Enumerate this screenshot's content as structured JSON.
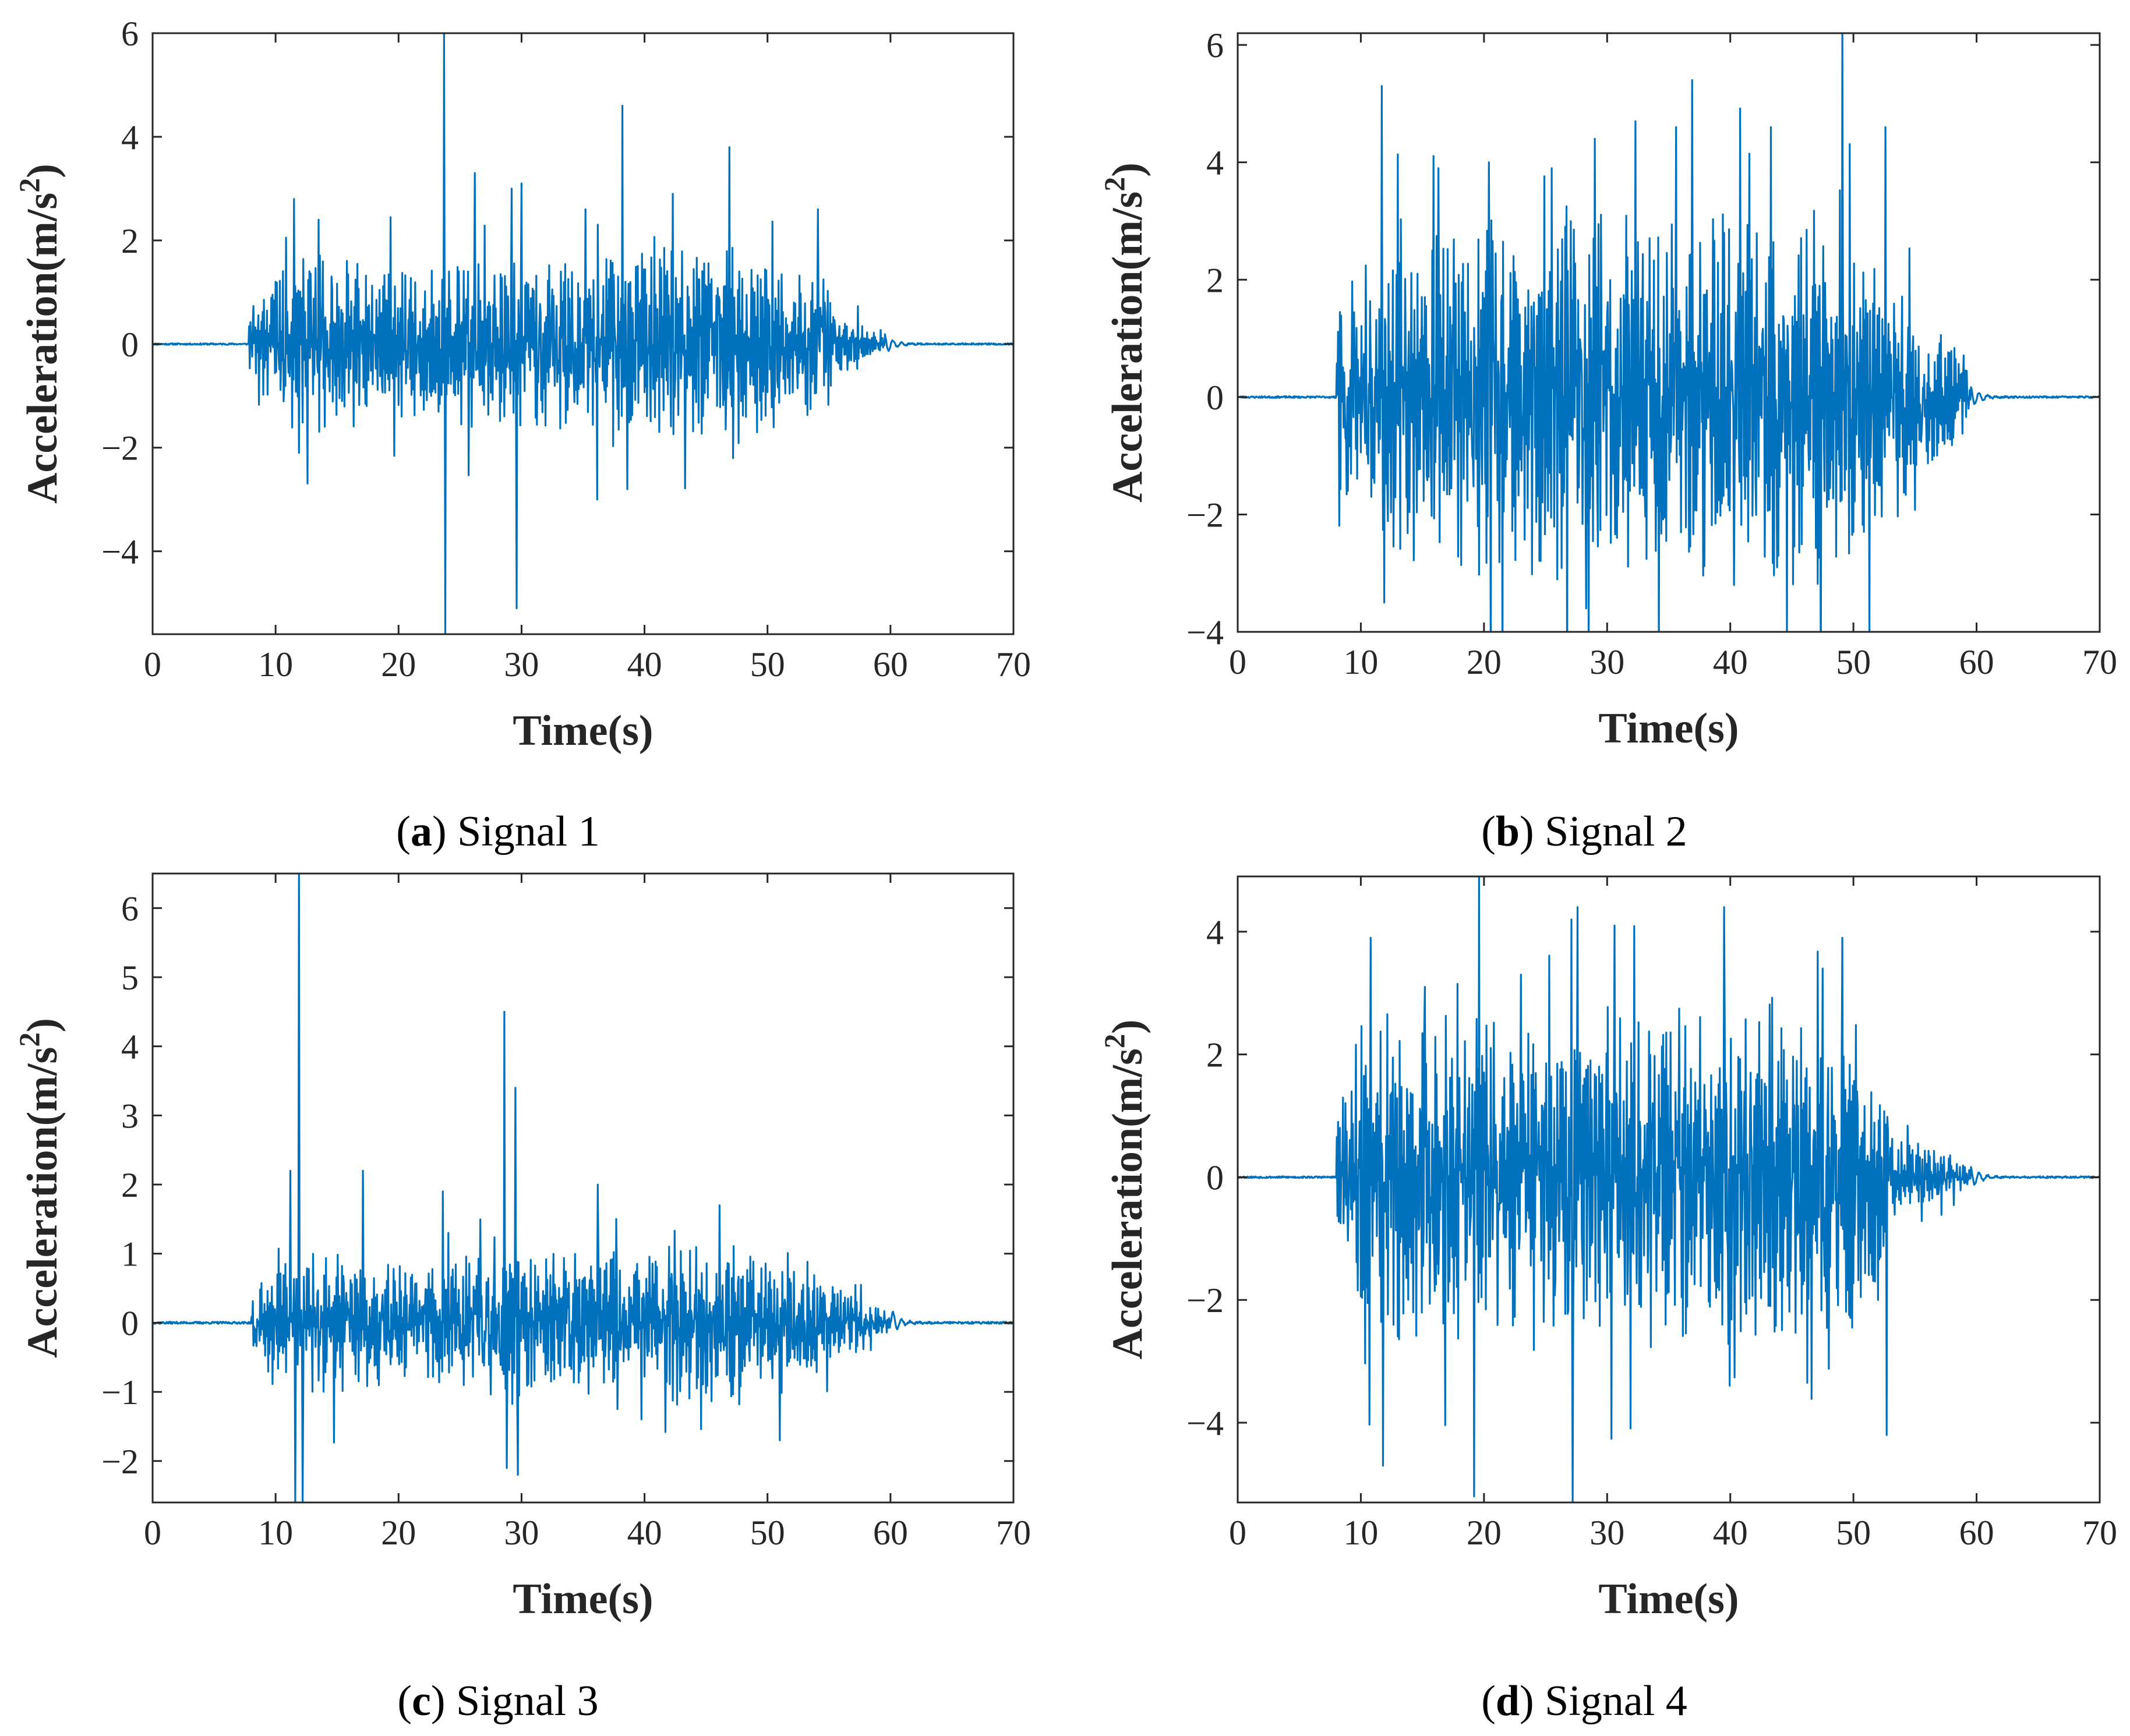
{
  "figure": {
    "color_line": "#0072BD",
    "color_axes": "#262626"
  },
  "chart_data": [
    {
      "type": "line",
      "caption_letter": "a",
      "caption_text": "Signal 1",
      "xlabel": "Time(s)",
      "ylabel_main": "Acceleration(m/s",
      "ylabel_sup": "2",
      "ylabel_close": ")",
      "xlim": [
        0,
        70
      ],
      "ylim": [
        -5.6,
        6
      ],
      "xticks": [
        0,
        10,
        20,
        30,
        40,
        50,
        60,
        70
      ],
      "xtick_labels": [
        "0",
        "10",
        "20",
        "30",
        "40",
        "50",
        "60",
        "70"
      ],
      "yticks": [
        -4,
        -2,
        0,
        2,
        4,
        6
      ],
      "ytick_labels": [
        "−4",
        "−2",
        "0",
        "2",
        "4",
        "6"
      ],
      "onset_s": 7.8,
      "end_s": 59.5,
      "envelope": [
        [
          7.8,
          0.5
        ],
        [
          12,
          1.6
        ],
        [
          20,
          1.3
        ],
        [
          30,
          1.4
        ],
        [
          40,
          1.6
        ],
        [
          47,
          1.7
        ],
        [
          54,
          1.1
        ],
        [
          57,
          0.45
        ],
        [
          59.5,
          0.1
        ]
      ],
      "seed": 11,
      "spikes": [
        [
          11.5,
          2.8
        ],
        [
          11.9,
          -2.1
        ],
        [
          13.5,
          2.4
        ],
        [
          23.7,
          6.0
        ],
        [
          23.8,
          -5.6
        ],
        [
          29.2,
          3.0
        ],
        [
          29.6,
          -5.1
        ],
        [
          30.0,
          3.1
        ],
        [
          38.2,
          4.6
        ],
        [
          38.6,
          -2.8
        ],
        [
          42.3,
          2.9
        ],
        [
          46.9,
          3.8
        ],
        [
          47.2,
          -2.2
        ],
        [
          54.1,
          2.6
        ],
        [
          26.2,
          3.3
        ],
        [
          35.2,
          2.6
        ]
      ]
    },
    {
      "type": "line",
      "caption_letter": "b",
      "caption_text": "Signal 2",
      "xlabel": "Time(s)",
      "ylabel_main": "Acceleration(m/s",
      "ylabel_sup": "2",
      "ylabel_close": ")",
      "xlim": [
        0,
        70
      ],
      "ylim": [
        -4,
        6.2
      ],
      "xticks": [
        0,
        10,
        20,
        30,
        40,
        50,
        60,
        70
      ],
      "xtick_labels": [
        "0",
        "10",
        "20",
        "30",
        "40",
        "50",
        "60",
        "70"
      ],
      "yticks": [
        -4,
        -2,
        0,
        2,
        4,
        6
      ],
      "ytick_labels": [
        "−4",
        "−2",
        "0",
        "2",
        "4",
        "6"
      ],
      "onset_s": 8.0,
      "end_s": 59.5,
      "envelope": [
        [
          8,
          1.5
        ],
        [
          12,
          2.6
        ],
        [
          20,
          2.7
        ],
        [
          30,
          2.8
        ],
        [
          40,
          2.8
        ],
        [
          50,
          2.6
        ],
        [
          55,
          1.4
        ],
        [
          59,
          0.6
        ],
        [
          59.5,
          0.1
        ]
      ],
      "seed": 23,
      "spikes": [
        [
          11.7,
          5.3
        ],
        [
          11.9,
          -3.5
        ],
        [
          16.3,
          3.9
        ],
        [
          20.4,
          4.0
        ],
        [
          25.5,
          3.9
        ],
        [
          28.3,
          -3.6
        ],
        [
          29.0,
          4.4
        ],
        [
          32.3,
          4.7
        ],
        [
          35.6,
          4.6
        ],
        [
          36.9,
          5.4
        ],
        [
          40.3,
          -3.2
        ],
        [
          43.3,
          4.6
        ],
        [
          43.8,
          -2.9
        ],
        [
          49.1,
          6.2
        ],
        [
          52.6,
          4.6
        ]
      ]
    },
    {
      "type": "line",
      "caption_letter": "c",
      "caption_text": "Signal 3",
      "xlabel": "Time(s)",
      "ylabel_main": "Acceleration(m/s",
      "ylabel_sup": "2",
      "ylabel_close": ")",
      "xlim": [
        0,
        70
      ],
      "ylim": [
        -2.6,
        6.5
      ],
      "xticks": [
        0,
        10,
        20,
        30,
        40,
        50,
        60,
        70
      ],
      "xtick_labels": [
        "0",
        "10",
        "20",
        "30",
        "40",
        "50",
        "60",
        "70"
      ],
      "yticks": [
        -2,
        -1,
        0,
        1,
        2,
        3,
        4,
        5,
        6
      ],
      "ytick_labels": [
        "−2",
        "−1",
        "0",
        "1",
        "2",
        "3",
        "4",
        "5",
        "6"
      ],
      "onset_s": 8.0,
      "end_s": 60.0,
      "envelope": [
        [
          8,
          0.4
        ],
        [
          11,
          0.9
        ],
        [
          15,
          0.9
        ],
        [
          20,
          0.7
        ],
        [
          25,
          0.8
        ],
        [
          28,
          1.2
        ],
        [
          32,
          0.8
        ],
        [
          37,
          0.9
        ],
        [
          45,
          1.0
        ],
        [
          51,
          0.9
        ],
        [
          56,
          0.5
        ],
        [
          60,
          0.1
        ]
      ],
      "seed": 37,
      "spikes": [
        [
          11.2,
          2.2
        ],
        [
          11.6,
          -2.6
        ],
        [
          11.9,
          6.5
        ],
        [
          12.2,
          -2.6
        ],
        [
          17.1,
          2.2
        ],
        [
          23.6,
          1.9
        ],
        [
          28.6,
          4.5
        ],
        [
          28.8,
          -2.1
        ],
        [
          29.5,
          3.4
        ],
        [
          29.7,
          -2.2
        ],
        [
          36.2,
          2.0
        ],
        [
          37.7,
          1.5
        ],
        [
          46.1,
          1.7
        ],
        [
          51.0,
          -1.7
        ]
      ]
    },
    {
      "type": "line",
      "caption_letter": "d",
      "caption_text": "Signal 4",
      "xlabel": "Time(s)",
      "ylabel_main": "Acceleration(m/s",
      "ylabel_sup": "2",
      "ylabel_close": ")",
      "xlim": [
        0,
        70
      ],
      "ylim": [
        -5.3,
        4.9
      ],
      "xticks": [
        0,
        10,
        20,
        30,
        40,
        50,
        60,
        70
      ],
      "xtick_labels": [
        "0",
        "10",
        "20",
        "30",
        "40",
        "50",
        "60",
        "70"
      ],
      "yticks": [
        -4,
        -2,
        0,
        2,
        4
      ],
      "ytick_labels": [
        "−4",
        "−2",
        "0",
        "2",
        "4"
      ],
      "onset_s": 8.0,
      "end_s": 59.5,
      "envelope": [
        [
          8,
          0.7
        ],
        [
          10,
          2.3
        ],
        [
          20,
          2.4
        ],
        [
          30,
          2.4
        ],
        [
          40,
          2.3
        ],
        [
          50,
          2.3
        ],
        [
          54,
          0.6
        ],
        [
          58,
          0.3
        ],
        [
          59.5,
          0.1
        ]
      ],
      "seed": 53,
      "spikes": [
        [
          10.8,
          3.9
        ],
        [
          11.8,
          -4.7
        ],
        [
          15.2,
          3.1
        ],
        [
          19.2,
          -5.2
        ],
        [
          19.6,
          4.9
        ],
        [
          23.0,
          3.3
        ],
        [
          27.2,
          -5.3
        ],
        [
          27.6,
          4.4
        ],
        [
          30.6,
          4.1
        ],
        [
          39.5,
          4.4
        ],
        [
          47.5,
          3.4
        ],
        [
          49.1,
          3.9
        ],
        [
          52.7,
          -4.2
        ]
      ]
    }
  ]
}
